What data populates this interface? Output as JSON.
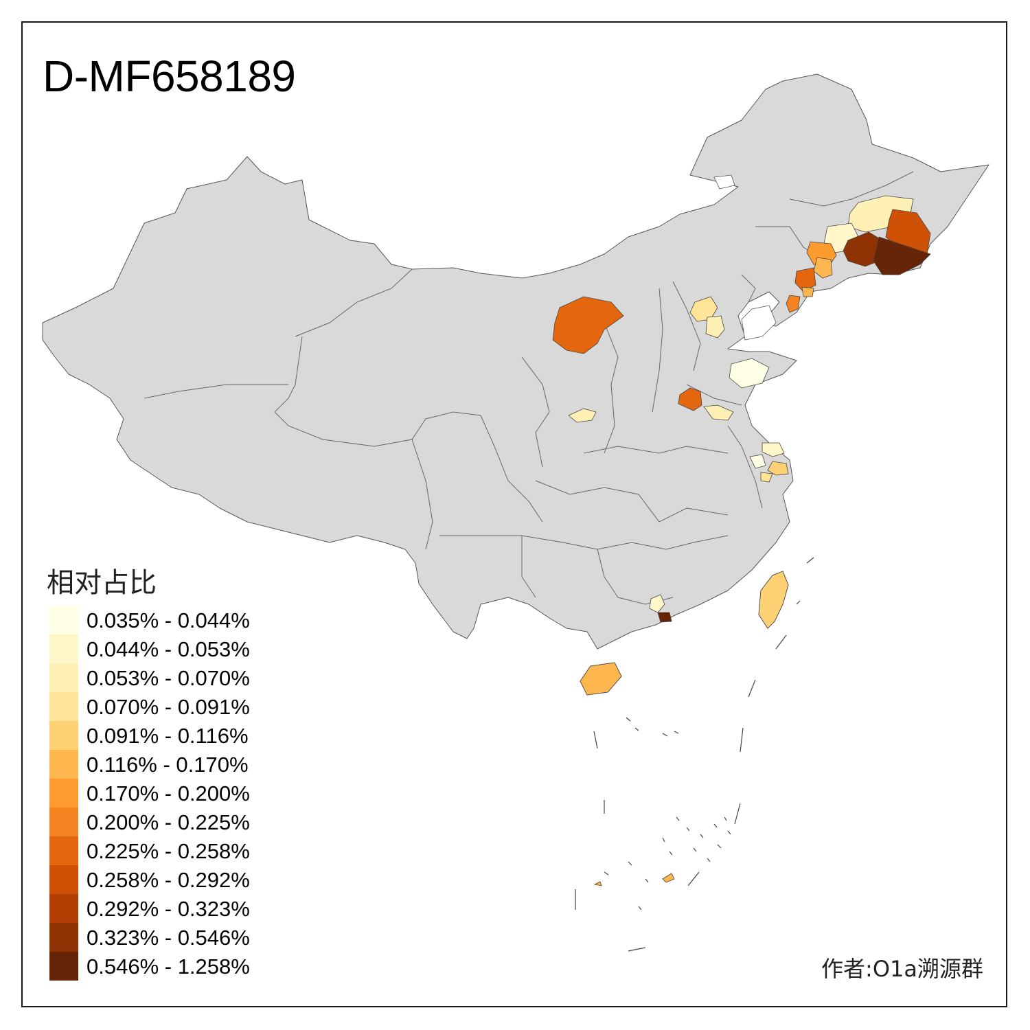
{
  "title": "D-MF658189",
  "legend": {
    "title": "相对占比",
    "items": [
      {
        "label": "0.035% - 0.044%",
        "color": "#ffffe5"
      },
      {
        "label": "0.044% - 0.053%",
        "color": "#fff7c9"
      },
      {
        "label": "0.053% - 0.070%",
        "color": "#fff0b5"
      },
      {
        "label": "0.070% - 0.091%",
        "color": "#fee496"
      },
      {
        "label": "0.091% - 0.116%",
        "color": "#fed274"
      },
      {
        "label": "0.116% - 0.170%",
        "color": "#feb74e"
      },
      {
        "label": "0.170% - 0.200%",
        "color": "#fe9b2f"
      },
      {
        "label": "0.200% - 0.225%",
        "color": "#f58220"
      },
      {
        "label": "0.225% - 0.258%",
        "color": "#e4670f"
      },
      {
        "label": "0.258% - 0.292%",
        "color": "#cf5106"
      },
      {
        "label": "0.292% - 0.323%",
        "color": "#b33f04"
      },
      {
        "label": "0.323% - 0.546%",
        "color": "#8f3204"
      },
      {
        "label": "0.546% - 1.258%",
        "color": "#662506"
      }
    ]
  },
  "credit": "作者:O1a溯源群",
  "colors": {
    "land": "#d9d9d9",
    "border": "#555555",
    "frame": "#1a1a1a"
  }
}
